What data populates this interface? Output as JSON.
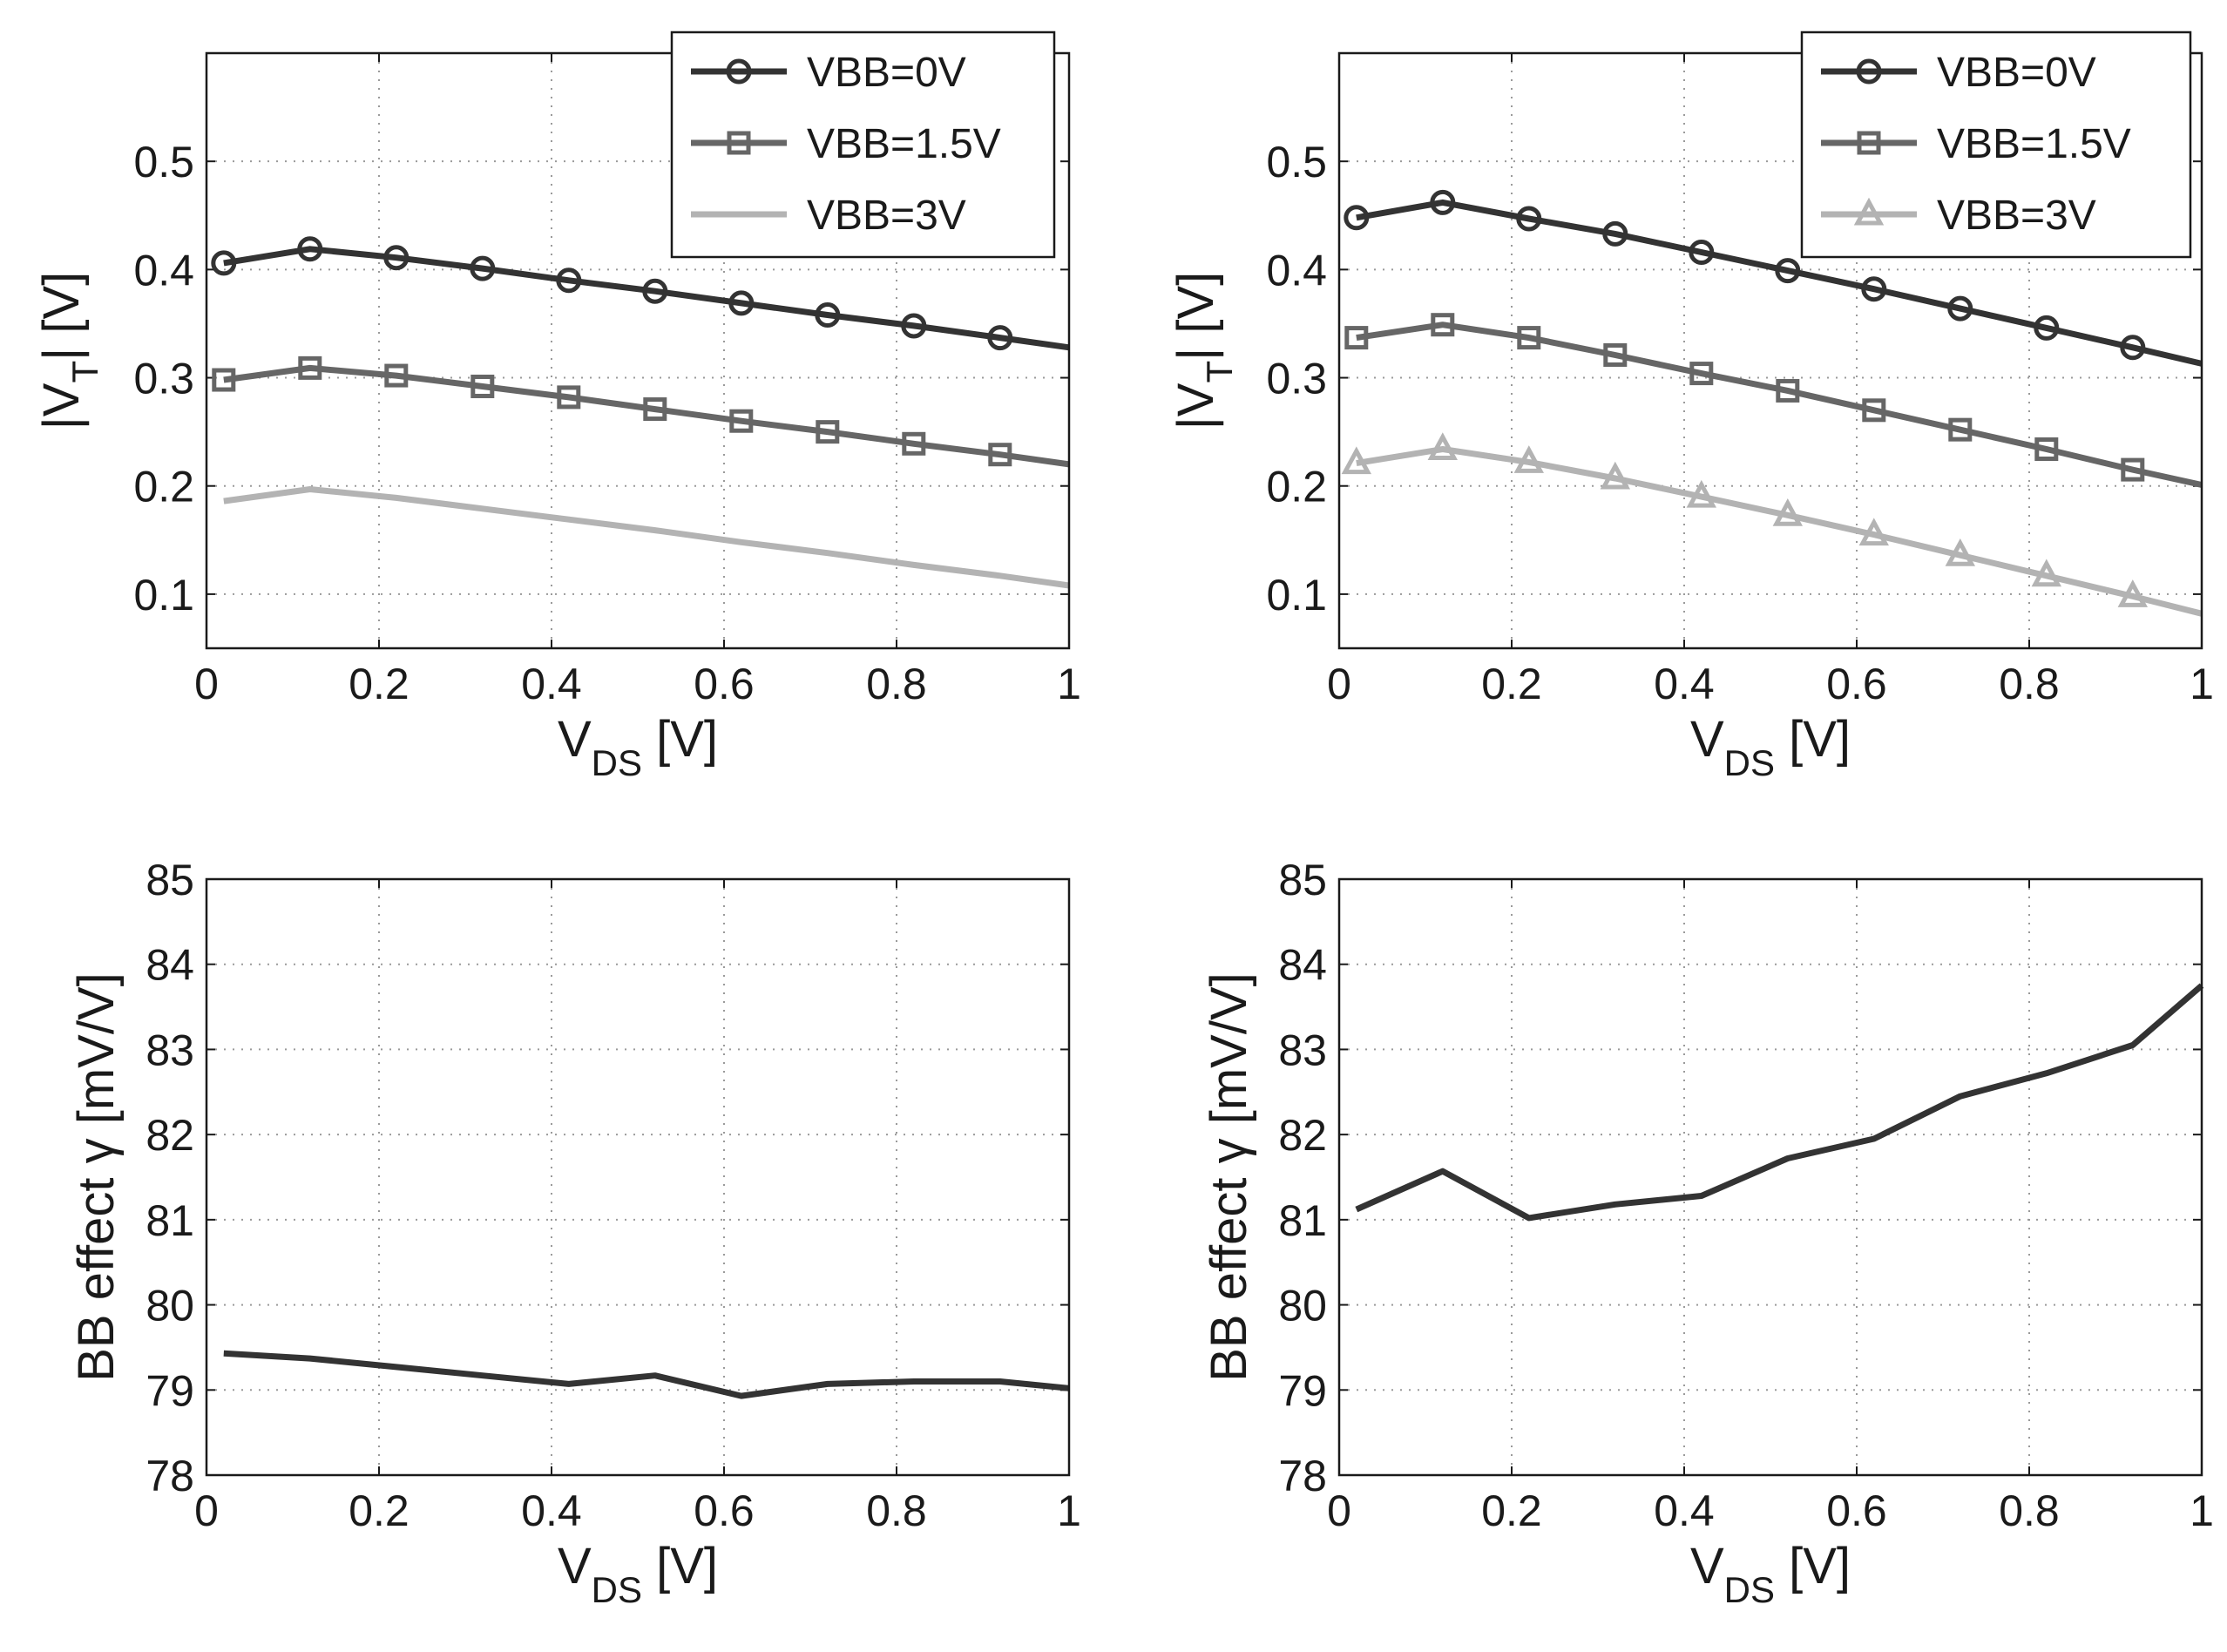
{
  "colors": {
    "vbb0": "#333333",
    "vbb15": "#666666",
    "vbb3": "#b3b3b3",
    "gamma": "#333333",
    "grid": "#9a9a9a",
    "axes": "#1a1a1a"
  },
  "chart_data": [
    {
      "type": "line",
      "panel": "top-left",
      "xlabel": "V",
      "xlabel_sub": "DS",
      "xlabel_unit": " [V]",
      "ylabel": "|V",
      "ylabel_sub": "T",
      "ylabel_unit": "| [V]",
      "xlim": [
        0,
        1
      ],
      "ylim": [
        0.05,
        0.6
      ],
      "xticks": [
        "0",
        "0.2",
        "0.4",
        "0.6",
        "0.8",
        "1"
      ],
      "yticks": [
        "0.1",
        "0.2",
        "0.3",
        "0.4",
        "0.5"
      ],
      "ytick_values": [
        0.1,
        0.2,
        0.3,
        0.4,
        0.5
      ],
      "grid": true,
      "legend_position": "top-right",
      "x": [
        0.02,
        0.12,
        0.22,
        0.32,
        0.42,
        0.52,
        0.62,
        0.72,
        0.82,
        0.92,
        1.0
      ],
      "series": [
        {
          "name": "VBB=0V",
          "marker": "circle",
          "color_key": "vbb0",
          "values": [
            0.406,
            0.419,
            0.411,
            0.401,
            0.39,
            0.38,
            0.369,
            0.358,
            0.348,
            0.337,
            0.328
          ]
        },
        {
          "name": "VBB=1.5V",
          "marker": "square",
          "color_key": "vbb15",
          "values": [
            0.298,
            0.309,
            0.302,
            0.292,
            0.282,
            0.271,
            0.26,
            0.25,
            0.239,
            0.229,
            0.22
          ]
        },
        {
          "name": "VBB=3V",
          "marker": "none",
          "color_key": "vbb3",
          "values": [
            0.186,
            0.197,
            0.189,
            0.179,
            0.169,
            0.159,
            0.148,
            0.138,
            0.127,
            0.117,
            0.108
          ]
        }
      ]
    },
    {
      "type": "line",
      "panel": "top-right",
      "xlabel": "V",
      "xlabel_sub": "DS",
      "xlabel_unit": " [V]",
      "ylabel": "|V",
      "ylabel_sub": "T",
      "ylabel_unit": "| [V]",
      "xlim": [
        0,
        1
      ],
      "ylim": [
        0.05,
        0.6
      ],
      "xticks": [
        "0",
        "0.2",
        "0.4",
        "0.6",
        "0.8",
        "1"
      ],
      "yticks": [
        "0.1",
        "0.2",
        "0.3",
        "0.4",
        "0.5"
      ],
      "ytick_values": [
        0.1,
        0.2,
        0.3,
        0.4,
        0.5
      ],
      "grid": true,
      "legend_position": "top-right",
      "x": [
        0.02,
        0.12,
        0.22,
        0.32,
        0.42,
        0.52,
        0.62,
        0.72,
        0.82,
        0.92,
        1.0
      ],
      "series": [
        {
          "name": "VBB=0V",
          "marker": "circle",
          "color_key": "vbb0",
          "values": [
            0.448,
            0.462,
            0.447,
            0.433,
            0.416,
            0.399,
            0.382,
            0.364,
            0.346,
            0.328,
            0.313
          ]
        },
        {
          "name": "VBB=1.5V",
          "marker": "square",
          "color_key": "vbb15",
          "values": [
            0.337,
            0.349,
            0.337,
            0.321,
            0.304,
            0.288,
            0.27,
            0.252,
            0.234,
            0.215,
            0.201
          ]
        },
        {
          "name": "VBB=3V",
          "marker": "triangle",
          "color_key": "vbb3",
          "values": [
            0.221,
            0.234,
            0.222,
            0.207,
            0.19,
            0.173,
            0.155,
            0.136,
            0.117,
            0.098,
            0.082
          ]
        }
      ]
    },
    {
      "type": "line",
      "panel": "bottom-left",
      "xlabel": "V",
      "xlabel_sub": "DS",
      "xlabel_unit": " [V]",
      "ylabel": "BB effect γ [mV/V]",
      "xlim": [
        0,
        1
      ],
      "ylim": [
        78,
        85
      ],
      "xticks": [
        "0",
        "0.2",
        "0.4",
        "0.6",
        "0.8",
        "1"
      ],
      "yticks": [
        "78",
        "79",
        "80",
        "81",
        "82",
        "83",
        "84",
        "85"
      ],
      "ytick_values": [
        78,
        79,
        80,
        81,
        82,
        83,
        84,
        85
      ],
      "grid": true,
      "x": [
        0.02,
        0.12,
        0.22,
        0.32,
        0.42,
        0.52,
        0.62,
        0.72,
        0.82,
        0.92,
        1.0
      ],
      "series": [
        {
          "name": "BB effect",
          "marker": "none",
          "color_key": "gamma",
          "values": [
            79.43,
            79.37,
            79.27,
            79.17,
            79.07,
            79.17,
            78.93,
            79.07,
            79.1,
            79.1,
            79.02
          ]
        }
      ]
    },
    {
      "type": "line",
      "panel": "bottom-right",
      "xlabel": "V",
      "xlabel_sub": "DS",
      "xlabel_unit": " [V]",
      "ylabel": "BB effect γ [mV/V]",
      "xlim": [
        0,
        1
      ],
      "ylim": [
        78,
        85
      ],
      "xticks": [
        "0",
        "0.2",
        "0.4",
        "0.6",
        "0.8",
        "1"
      ],
      "yticks": [
        "78",
        "79",
        "80",
        "81",
        "82",
        "83",
        "84",
        "85"
      ],
      "ytick_values": [
        78,
        79,
        80,
        81,
        82,
        83,
        84,
        85
      ],
      "grid": true,
      "x": [
        0.02,
        0.12,
        0.22,
        0.32,
        0.42,
        0.52,
        0.62,
        0.72,
        0.82,
        0.92,
        1.0
      ],
      "series": [
        {
          "name": "BB effect",
          "marker": "none",
          "color_key": "gamma",
          "values": [
            81.12,
            81.57,
            81.02,
            81.18,
            81.28,
            81.72,
            81.95,
            82.45,
            82.72,
            83.05,
            83.75
          ]
        }
      ]
    }
  ]
}
